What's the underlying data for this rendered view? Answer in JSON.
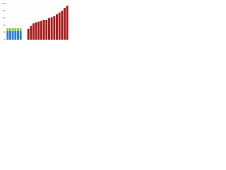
{
  "chart_data": {
    "type": "bar",
    "stacked": true,
    "categories": [
      null,
      null,
      null,
      null,
      null,
      null,
      null,
      null,
      null,
      null,
      null,
      null,
      null,
      null,
      null,
      null,
      null,
      null,
      null,
      null,
      null,
      null,
      null,
      null
    ],
    "series": [
      {
        "color": "#2f7ed8",
        "values": [
          24,
          24,
          24,
          24,
          24,
          24,
          null,
          null,
          null,
          null,
          null,
          null,
          null,
          null,
          null,
          null,
          null,
          null,
          null,
          null,
          null,
          null,
          null,
          null
        ]
      },
      {
        "color": "#8bc34a",
        "values": [
          8,
          8,
          8,
          8,
          8,
          8,
          null,
          null,
          null,
          null,
          null,
          null,
          null,
          null,
          null,
          null,
          null,
          null,
          null,
          null,
          null,
          null,
          null,
          null
        ]
      },
      {
        "color": "#a81c1c",
        "values": [
          null,
          null,
          null,
          null,
          null,
          null,
          null,
          null,
          30,
          38,
          45,
          48,
          50,
          52,
          55,
          55,
          60,
          62,
          65,
          70,
          75,
          80,
          88,
          94
        ]
      }
    ],
    "ylim": [
      0,
      100
    ],
    "yticks": [
      0,
      20,
      40,
      60,
      80,
      100
    ],
    "grid": true
  }
}
